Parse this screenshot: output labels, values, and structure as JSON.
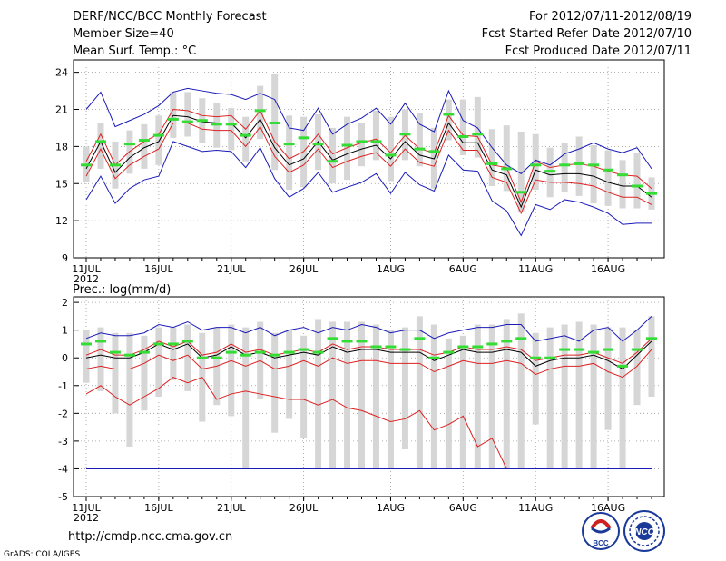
{
  "header": {
    "title": "DERF/NCC/BCC Monthly Forecast",
    "member_size": "Member Size=40",
    "period": "For 2012/07/11-2012/08/19",
    "fcst_started": "Fcst Started Refer Date 2012/07/10",
    "fcst_produced": "Fcst Produced Date 2012/07/11"
  },
  "footer": {
    "url": "http://cmdp.ncc.cma.gov.cn",
    "credit": "GrADS: COLA/IGES",
    "logo_bcc": "BCC",
    "logo_ncc": "NCC"
  },
  "colors": {
    "box": "#d6d6d6",
    "median": "#000000",
    "mean_band": "#dd2222",
    "extreme": "#1a1ab8",
    "observed": "#33dd33"
  },
  "chart_data": [
    {
      "type": "line",
      "title": "Mean Surf. Temp.: °C",
      "xlabel": "",
      "ylabel": "°C",
      "ylim": [
        9,
        25
      ],
      "yticks": [
        9,
        12,
        15,
        18,
        21,
        24
      ],
      "grid": true,
      "x_tick_labels": [
        {
          "day": 1,
          "label": "11JUL",
          "sub": "2012"
        },
        {
          "day": 6,
          "label": "16JUL"
        },
        {
          "day": 11,
          "label": "21JUL"
        },
        {
          "day": 16,
          "label": "26JUL"
        },
        {
          "day": 22,
          "label": "1AUG"
        },
        {
          "day": 27,
          "label": "6AUG"
        },
        {
          "day": 32,
          "label": "11AUG"
        },
        {
          "day": 37,
          "label": "16AUG"
        }
      ],
      "days": [
        1,
        2,
        3,
        4,
        5,
        6,
        7,
        8,
        9,
        10,
        11,
        12,
        13,
        14,
        15,
        16,
        17,
        18,
        19,
        20,
        21,
        22,
        23,
        24,
        25,
        26,
        27,
        28,
        29,
        30,
        31,
        32,
        33,
        34,
        35,
        36,
        37,
        38,
        39,
        40
      ],
      "series": [
        {
          "name": "upper",
          "values": [
            21.0,
            22.4,
            19.6,
            20.1,
            20.6,
            21.3,
            22.4,
            22.7,
            22.5,
            22.3,
            22.2,
            21.8,
            22.3,
            21.8,
            19.5,
            19.3,
            21.1,
            19.0,
            19.8,
            20.3,
            21.1,
            19.8,
            21.5,
            19.8,
            19.2,
            22.5,
            20.1,
            19.5,
            17.9,
            16.5,
            15.8,
            16.9,
            16.5,
            17.4,
            17.8,
            18.3,
            17.8,
            17.5,
            17.9,
            16.2
          ]
        },
        {
          "name": "upper_mean",
          "values": [
            16.8,
            19.0,
            16.5,
            17.6,
            18.4,
            19.0,
            21.0,
            20.9,
            20.5,
            20.4,
            20.5,
            19.4,
            20.9,
            18.4,
            17.0,
            17.6,
            19.0,
            17.4,
            17.9,
            18.3,
            18.6,
            17.5,
            18.9,
            17.8,
            17.5,
            20.5,
            18.9,
            18.8,
            16.5,
            16.3,
            13.5,
            16.8,
            16.3,
            16.5,
            16.6,
            16.4,
            16.0,
            15.7,
            15.6,
            14.6
          ]
        },
        {
          "name": "median",
          "values": [
            16.2,
            18.4,
            15.9,
            17.1,
            17.9,
            18.4,
            20.5,
            20.4,
            20.0,
            19.9,
            19.9,
            18.7,
            20.2,
            17.9,
            16.5,
            17.0,
            18.4,
            16.9,
            17.4,
            17.8,
            18.1,
            17.0,
            18.4,
            17.3,
            17.0,
            19.9,
            18.3,
            18.3,
            16.1,
            15.7,
            13.1,
            16.1,
            15.7,
            15.8,
            15.8,
            15.6,
            15.1,
            14.8,
            14.8,
            13.9
          ]
        },
        {
          "name": "lower_mean",
          "values": [
            15.6,
            17.8,
            15.4,
            16.5,
            17.2,
            17.8,
            19.9,
            19.9,
            19.4,
            19.3,
            19.3,
            18.0,
            19.6,
            17.2,
            15.9,
            16.5,
            17.8,
            16.3,
            16.8,
            17.2,
            17.5,
            16.4,
            17.8,
            16.7,
            16.4,
            19.3,
            17.7,
            17.7,
            15.5,
            15.1,
            12.6,
            15.3,
            15.1,
            15.1,
            15.0,
            14.8,
            14.3,
            13.9,
            13.9,
            13.3
          ]
        },
        {
          "name": "lower",
          "values": [
            13.7,
            15.6,
            13.4,
            14.6,
            15.3,
            15.6,
            18.4,
            18.0,
            17.6,
            17.7,
            17.6,
            16.3,
            17.9,
            15.4,
            13.9,
            14.6,
            15.9,
            14.3,
            14.7,
            15.1,
            15.8,
            14.2,
            15.9,
            14.9,
            14.4,
            17.3,
            16.1,
            16.0,
            13.6,
            12.8,
            10.8,
            13.3,
            12.9,
            13.7,
            13.5,
            13.1,
            12.6,
            11.7,
            11.8,
            11.8
          ]
        },
        {
          "name": "observed",
          "values": [
            16.5,
            18.4,
            16.5,
            18.2,
            18.5,
            18.9,
            20.2,
            20.0,
            20.1,
            19.8,
            19.8,
            18.9,
            20.9,
            19.9,
            18.2,
            18.7,
            18.2,
            16.8,
            18.1,
            18.4,
            18.4,
            17.3,
            19.0,
            17.8,
            17.6,
            20.6,
            18.8,
            19.0,
            16.6,
            16.2,
            14.3,
            16.5,
            16.0,
            16.5,
            16.6,
            16.5,
            16.1,
            15.7,
            14.8,
            14.2
          ]
        },
        {
          "name": "box_high",
          "values": [
            18.0,
            19.9,
            18.4,
            19.3,
            19.8,
            20.5,
            22.4,
            22.4,
            21.9,
            21.5,
            21.1,
            20.4,
            22.9,
            23.9,
            20.5,
            20.4,
            20.6,
            19.5,
            20.4,
            19.9,
            20.9,
            20.4,
            21.0,
            20.7,
            19.5,
            21.8,
            21.8,
            22.0,
            19.4,
            19.7,
            19.2,
            19.0,
            17.9,
            18.3,
            18.8,
            18.1,
            17.7,
            16.9,
            17.5,
            15.5
          ]
        },
        {
          "name": "box_low",
          "values": [
            15.1,
            16.2,
            14.6,
            15.8,
            16.2,
            16.5,
            18.7,
            18.8,
            18.3,
            17.9,
            17.7,
            16.8,
            18.6,
            16.1,
            14.5,
            14.7,
            16.1,
            15.0,
            15.3,
            16.4,
            16.9,
            15.2,
            16.9,
            16.4,
            14.6,
            18.5,
            17.3,
            17.1,
            14.8,
            14.4,
            12.7,
            14.5,
            13.9,
            14.3,
            14.0,
            13.4,
            13.2,
            13.0,
            13.0,
            12.9
          ]
        }
      ]
    },
    {
      "type": "line",
      "title": "Prec.: log(mm/d)",
      "xlabel": "",
      "ylabel": "log(mm/d)",
      "ylim": [
        -5,
        2.2
      ],
      "yticks": [
        -5,
        -4,
        -3,
        -2,
        -1,
        0,
        1,
        2
      ],
      "grid": true,
      "x_tick_labels": [
        {
          "day": 1,
          "label": "11JUL",
          "sub": "2012"
        },
        {
          "day": 6,
          "label": "16JUL"
        },
        {
          "day": 11,
          "label": "21JUL"
        },
        {
          "day": 16,
          "label": "26JUL"
        },
        {
          "day": 22,
          "label": "1AUG"
        },
        {
          "day": 27,
          "label": "6AUG"
        },
        {
          "day": 32,
          "label": "11AUG"
        },
        {
          "day": 37,
          "label": "16AUG"
        }
      ],
      "days": [
        1,
        2,
        3,
        4,
        5,
        6,
        7,
        8,
        9,
        10,
        11,
        12,
        13,
        14,
        15,
        16,
        17,
        18,
        19,
        20,
        21,
        22,
        23,
        24,
        25,
        26,
        27,
        28,
        29,
        30,
        31,
        32,
        33,
        34,
        35,
        36,
        37,
        38,
        39,
        40
      ],
      "series": [
        {
          "name": "upper",
          "values": [
            0.7,
            0.9,
            0.8,
            0.8,
            0.9,
            1.2,
            1.1,
            1.3,
            1.0,
            1.1,
            1.1,
            0.9,
            1.1,
            0.8,
            1.0,
            1.1,
            0.9,
            1.1,
            1.0,
            1.2,
            1.1,
            0.9,
            1.0,
            1.0,
            0.7,
            0.9,
            1.0,
            1.1,
            1.1,
            1.2,
            1.2,
            0.6,
            0.7,
            0.8,
            0.6,
            1.0,
            1.1,
            0.6,
            1.0,
            1.5
          ]
        },
        {
          "name": "upper_mean",
          "values": [
            0.1,
            0.3,
            0.1,
            0.1,
            0.3,
            0.6,
            0.4,
            0.6,
            0.1,
            0.2,
            0.5,
            0.2,
            0.3,
            0.1,
            0.2,
            0.3,
            0.2,
            0.5,
            0.3,
            0.4,
            0.4,
            0.3,
            0.3,
            0.3,
            0.1,
            0.2,
            0.4,
            0.3,
            0.3,
            0.4,
            0.3,
            -0.1,
            0.0,
            0.1,
            0.1,
            0.2,
            0.0,
            -0.2,
            0.2,
            0.7
          ]
        },
        {
          "name": "median",
          "values": [
            0.0,
            0.1,
            0.0,
            0.0,
            0.2,
            0.5,
            0.3,
            0.5,
            0.0,
            0.1,
            0.4,
            0.1,
            0.2,
            0.0,
            0.1,
            0.2,
            0.1,
            0.4,
            0.2,
            0.3,
            0.3,
            0.2,
            0.2,
            0.2,
            -0.1,
            0.1,
            0.3,
            0.2,
            0.2,
            0.3,
            0.2,
            -0.3,
            -0.1,
            0.0,
            0.0,
            0.1,
            -0.1,
            -0.4,
            0.1,
            0.6
          ]
        },
        {
          "name": "lower_mean",
          "values": [
            -0.4,
            -0.3,
            -0.4,
            -0.4,
            -0.2,
            0.1,
            -0.1,
            0.1,
            -0.4,
            -0.3,
            -0.1,
            -0.3,
            -0.1,
            -0.4,
            -0.3,
            -0.1,
            -0.3,
            0.0,
            -0.2,
            -0.1,
            -0.1,
            -0.2,
            -0.2,
            -0.2,
            -0.5,
            -0.3,
            -0.1,
            -0.2,
            -0.2,
            -0.1,
            -0.2,
            -0.6,
            -0.4,
            -0.3,
            -0.3,
            -0.2,
            -0.5,
            -0.7,
            -0.3,
            0.3
          ]
        },
        {
          "name": "lower",
          "values": [
            -1.3,
            -1.0,
            -1.4,
            -1.7,
            -1.4,
            -1.1,
            -0.7,
            -0.9,
            -0.7,
            -1.5,
            -1.3,
            -1.2,
            -1.3,
            -1.4,
            -1.5,
            -1.5,
            -1.7,
            -1.5,
            -1.8,
            -1.9,
            -2.1,
            -2.3,
            -2.2,
            -1.9,
            -2.6,
            -2.4,
            -2.1,
            -3.2,
            -2.9,
            -4.0,
            -4.0,
            -4.0,
            -4.0,
            -4.0,
            -4.0,
            -4.0,
            -4.0,
            -4.0,
            -4.0,
            -4.0
          ]
        },
        {
          "name": "min_floor",
          "values": [
            -4.0,
            -4.0,
            -4.0,
            -4.0,
            -4.0,
            -4.0,
            -4.0,
            -4.0,
            -4.0,
            -4.0,
            -4.0,
            -4.0,
            -4.0,
            -4.0,
            -4.0,
            -4.0,
            -4.0,
            -4.0,
            -4.0,
            -4.0,
            -4.0,
            -4.0,
            -4.0,
            -4.0,
            -4.0,
            -4.0,
            -4.0,
            -4.0,
            -4.0,
            -4.0,
            -4.0,
            -4.0,
            -4.0,
            -4.0,
            -4.0,
            -4.0,
            -4.0,
            -4.0,
            -4.0,
            -4.0
          ]
        },
        {
          "name": "observed",
          "values": [
            0.5,
            0.6,
            0.2,
            0.1,
            0.2,
            0.5,
            0.5,
            0.6,
            0.0,
            0.0,
            0.2,
            0.1,
            0.2,
            0.1,
            0.2,
            0.3,
            0.2,
            0.7,
            0.6,
            0.6,
            0.4,
            0.4,
            0.3,
            0.7,
            0.0,
            0.2,
            0.4,
            0.4,
            0.5,
            0.6,
            0.7,
            0.0,
            0.0,
            0.3,
            0.3,
            0.2,
            0.3,
            -0.3,
            0.3,
            0.7
          ]
        },
        {
          "name": "box_high",
          "values": [
            1.0,
            1.1,
            0.9,
            0.9,
            0.8,
            1.1,
            1.1,
            1.2,
            0.9,
            1.1,
            1.2,
            1.1,
            1.3,
            0.9,
            1.0,
            0.8,
            1.4,
            1.3,
            1.3,
            1.3,
            1.2,
            1.0,
            1.1,
            1.5,
            1.2,
            0.7,
            0.8,
            1.2,
            1.2,
            1.4,
            1.6,
            0.9,
            1.1,
            1.2,
            1.3,
            1.2,
            1.1,
            1.1,
            1.0,
            1.5
          ]
        },
        {
          "name": "box_low",
          "values": [
            -0.9,
            -1.2,
            -2.0,
            -3.2,
            -1.9,
            -1.4,
            -0.8,
            -1.2,
            -2.3,
            -1.7,
            -2.1,
            -4.0,
            -1.5,
            -2.7,
            -2.2,
            -2.9,
            -4.0,
            -4.0,
            -4.0,
            -4.0,
            -4.0,
            -4.0,
            -3.3,
            -4.0,
            -4.0,
            -4.0,
            -4.0,
            -4.0,
            -4.0,
            -4.0,
            -4.0,
            -2.4,
            -4.0,
            -4.0,
            -4.0,
            -4.0,
            -2.6,
            -4.0,
            -1.7,
            -1.4
          ]
        }
      ]
    }
  ]
}
